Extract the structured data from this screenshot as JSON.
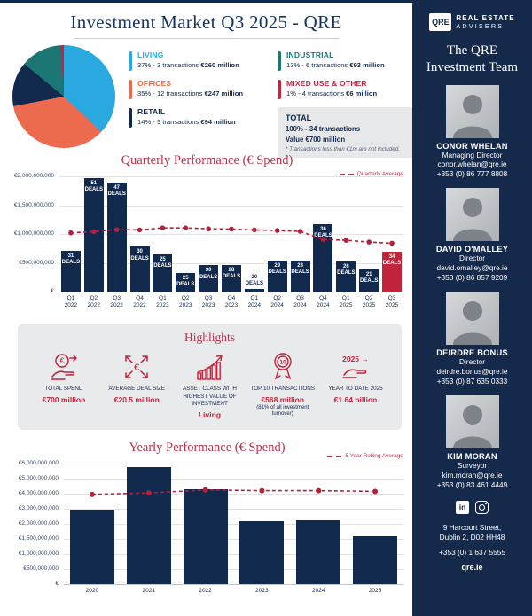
{
  "page": {
    "title": "Investment Market Q3 2025 - QRE"
  },
  "chart_data": [
    {
      "id": "sector-pie",
      "type": "pie",
      "title": "Q3 2025 investment by sector",
      "segments": [
        {
          "name": "LIVING",
          "pct": 37,
          "detail": "37% - 3 transactions",
          "value": "€260 million",
          "color": "#29A9E0"
        },
        {
          "name": "OFFICES",
          "pct": 35,
          "detail": "35% - 12 transactions",
          "value": "€247 million",
          "color": "#EC6A4D"
        },
        {
          "name": "RETAIL",
          "pct": 14,
          "detail": "14% - 9 transactions",
          "value": "€94 million",
          "color": "#12294E"
        },
        {
          "name": "INDUSTRIAL",
          "pct": 13,
          "detail": "13% - 6 transactions",
          "value": "€93 million",
          "color": "#1B7674"
        },
        {
          "name": "MIXED USE & OTHER",
          "pct": 1,
          "detail": "1% - 4 transactions",
          "value": "€6 million",
          "color": "#C2243E"
        }
      ],
      "total": {
        "title": "TOTAL",
        "line1": "100% - 34 transactions",
        "line2": "Value €700 million",
        "footnote": "* Transactions less than €1m are not included."
      }
    },
    {
      "id": "quarterly",
      "type": "bar",
      "title": "Quarterly Performance (€ Spend)",
      "legend": "Quarterly Average",
      "categories": [
        "Q1 2022",
        "Q2 2022",
        "Q3 2022",
        "Q4 2022",
        "Q1 2023",
        "Q2 2023",
        "Q3 2023",
        "Q4 2023",
        "Q1 2024",
        "Q2 2024",
        "Q3 2024",
        "Q4 2024",
        "Q1 2025",
        "Q2 2025",
        "Q3 2025"
      ],
      "values_eur_millions": [
        715,
        1970,
        1890,
        780,
        645,
        330,
        455,
        465,
        45,
        535,
        545,
        1165,
        530,
        390,
        700
      ],
      "deals": [
        31,
        51,
        47,
        30,
        25,
        25,
        30,
        28,
        20,
        29,
        23,
        36,
        26,
        21,
        34
      ],
      "deals_label": "DEALS",
      "average_eur_millions": [
        1020,
        1040,
        1075,
        1070,
        1105,
        1105,
        1090,
        1085,
        1070,
        1060,
        1045,
        905,
        890,
        860,
        840
      ],
      "axis_scale_millions": [
        0,
        500,
        1000,
        1500,
        2000
      ],
      "ytick_labels": [
        "€",
        "€500,000,000",
        "€1,000,000,000",
        "€1,500,000,000",
        "€2,000,000,000"
      ],
      "highlight_index": 14
    },
    {
      "id": "yearly",
      "type": "bar",
      "title": "Yearly Performance (€ Spend)",
      "legend": "5 Year Rolling Average",
      "categories": [
        "2020",
        "2021",
        "2022",
        "2023",
        "2024",
        "2025"
      ],
      "values_eur_millions": [
        2950,
        5750,
        4300,
        2150,
        2250,
        1600
      ],
      "average_eur_millions": [
        3950,
        4050,
        4250,
        4200,
        4200,
        4150
      ],
      "axis_scale_millions": [
        0,
        500,
        1000,
        1500,
        2000,
        3000,
        4000,
        5000,
        6000
      ],
      "ytick_labels": [
        "€",
        "€500,000,000",
        "€1,000,000,000",
        "€1,500,000,000",
        "€2,000,000,000",
        "€3,000,000,000",
        "€4,000,000,000",
        "€5,000,000,000",
        "€6,000,000,000"
      ],
      "highlight_index": -1
    }
  ],
  "highlights": {
    "title": "Highlights",
    "items": [
      {
        "label": "TOTAL SPEND",
        "value": "€700 million",
        "icon": "euro-hand-icon"
      },
      {
        "label": "AVERAGE DEAL SIZE",
        "value": "€20.5 million",
        "icon": "expand-arrows-euro-icon"
      },
      {
        "label": "ASSET CLASS WITH HIGHEST VALUE OF INVESTMENT",
        "value": "Living",
        "icon": "growth-bars-icon"
      },
      {
        "label": "TOP 10 TRANSACTIONS",
        "value": "€568 million",
        "note": "(81% of all investment turnover)",
        "icon": "award-badge-icon",
        "icon_text": "10"
      },
      {
        "label": "YEAR TO DATE 2025",
        "value": "€1.64 billion",
        "icon": "year-hand-icon",
        "icon_text": "2025 →"
      }
    ]
  },
  "sidebar": {
    "logo": {
      "mark": "QRE",
      "line1": "REAL ESTATE",
      "line2": "ADVISERS"
    },
    "team_heading_line1": "The QRE",
    "team_heading_line2": "Investment Team",
    "members": [
      {
        "name": "CONOR WHELAN",
        "role": "Managing Director",
        "email": "conor.whelan@qre.ie",
        "phone": "+353 (0) 86 777 8808"
      },
      {
        "name": "DAVID O'MALLEY",
        "role": "Director",
        "email": "david.omalley@qre.ie",
        "phone": "+353 (0) 86 857 9209"
      },
      {
        "name": "DEIRDRE BONUS",
        "role": "Director",
        "email": "deirdre.bonus@qre.ie",
        "phone": "+353 (0) 87 635 0333"
      },
      {
        "name": "KIM MORAN",
        "role": "Surveyor",
        "email": "kim.moran@qre.ie",
        "phone": "+353 (0) 83 461 4449"
      }
    ],
    "address_line1": "9 Harcourt Street,",
    "address_line2": "Dublin 2, D02 HH48",
    "phone": "+353 (0) 1 637 5555",
    "website": "qre.ie"
  },
  "colors": {
    "navy": "#12294E",
    "sidebar_navy": "#15294B",
    "crimson": "#C2243E",
    "heading_crimson": "#B9304A",
    "panel_gray": "#E9EAEB",
    "gridline": "#E0E2E5"
  }
}
